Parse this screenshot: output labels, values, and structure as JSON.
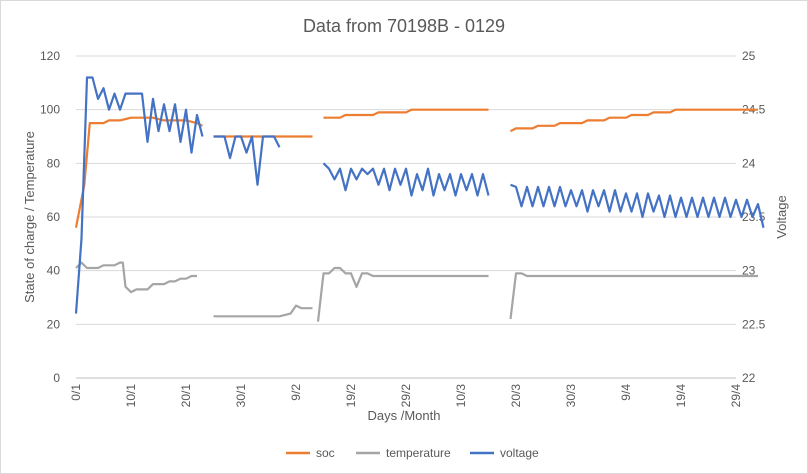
{
  "chart_data": {
    "type": "line",
    "title": "Data from 70198B - 0129",
    "xlabel": "Days /Month",
    "ylabel_left": "State of charge / Temperature",
    "ylabel_right": "Voltage",
    "x_ticks": [
      "0/1",
      "10/1",
      "20/1",
      "30/1",
      "9/2",
      "19/2",
      "29/2",
      "10/3",
      "20/3",
      "30/3",
      "9/4",
      "19/4",
      "29/4"
    ],
    "xlim": [
      0,
      120
    ],
    "ylim_left": [
      0,
      120
    ],
    "ylim_right": [
      22,
      25
    ],
    "y_ticks_left": [
      0,
      20,
      40,
      60,
      80,
      100,
      120
    ],
    "y_ticks_right": [
      22,
      22.5,
      23,
      23.5,
      24,
      24.5,
      25
    ],
    "grid": true,
    "legend_position": "bottom",
    "series": [
      {
        "name": "soc",
        "axis": "left",
        "color": "#ed7d31",
        "segments": [
          [
            [
              0,
              56
            ],
            [
              1.5,
              72
            ],
            [
              2.5,
              95
            ],
            [
              3.5,
              95
            ],
            [
              5,
              95
            ],
            [
              6,
              96
            ],
            [
              8,
              96
            ],
            [
              10,
              97
            ],
            [
              12,
              97
            ],
            [
              14,
              97
            ],
            [
              16,
              96
            ],
            [
              18,
              96
            ],
            [
              20,
              96
            ],
            [
              22,
              95
            ],
            [
              23,
              94
            ]
          ],
          [
            [
              25,
              90
            ],
            [
              28,
              90
            ],
            [
              32,
              90
            ],
            [
              36,
              90
            ],
            [
              40,
              90
            ],
            [
              43,
              90
            ]
          ],
          [
            [
              45,
              97
            ],
            [
              48,
              97
            ],
            [
              49,
              98
            ],
            [
              52,
              98
            ],
            [
              54,
              98
            ],
            [
              55,
              99
            ],
            [
              58,
              99
            ],
            [
              60,
              99
            ],
            [
              61,
              100
            ],
            [
              64,
              100
            ],
            [
              67,
              100
            ],
            [
              70,
              100
            ],
            [
              73,
              100
            ],
            [
              75,
              100
            ]
          ],
          [
            [
              79,
              92
            ],
            [
              80,
              93
            ],
            [
              83,
              93
            ],
            [
              84,
              94
            ],
            [
              87,
              94
            ],
            [
              88,
              95
            ],
            [
              92,
              95
            ],
            [
              93,
              96
            ],
            [
              96,
              96
            ],
            [
              97,
              97
            ],
            [
              100,
              97
            ],
            [
              101,
              98
            ],
            [
              104,
              98
            ],
            [
              105,
              99
            ],
            [
              108,
              99
            ],
            [
              109,
              100
            ],
            [
              114,
              100
            ],
            [
              118,
              100
            ],
            [
              122,
              100
            ],
            [
              124,
              100
            ]
          ]
        ]
      },
      {
        "name": "temperature",
        "axis": "left",
        "color": "#a5a5a5",
        "segments": [
          [
            [
              0,
              41
            ],
            [
              1,
              43
            ],
            [
              2,
              41
            ],
            [
              3,
              41
            ],
            [
              4,
              41
            ],
            [
              5,
              42
            ],
            [
              6,
              42
            ],
            [
              7,
              42
            ],
            [
              8,
              43
            ],
            [
              8.5,
              43
            ],
            [
              9,
              34
            ],
            [
              10,
              32
            ],
            [
              11,
              33
            ],
            [
              12,
              33
            ],
            [
              13,
              33
            ],
            [
              14,
              35
            ],
            [
              15,
              35
            ],
            [
              16,
              35
            ],
            [
              17,
              36
            ],
            [
              18,
              36
            ],
            [
              19,
              37
            ],
            [
              20,
              37
            ],
            [
              21,
              38
            ],
            [
              22,
              38
            ]
          ],
          [
            [
              25,
              23
            ],
            [
              28,
              23
            ],
            [
              31,
              23
            ],
            [
              34,
              23
            ],
            [
              37,
              23
            ],
            [
              39,
              24
            ],
            [
              40,
              27
            ],
            [
              41,
              26
            ],
            [
              43,
              26
            ]
          ],
          [
            [
              44,
              21
            ],
            [
              45,
              39
            ],
            [
              46,
              39
            ],
            [
              47,
              41
            ],
            [
              48,
              41
            ],
            [
              49,
              39
            ],
            [
              50,
              39
            ],
            [
              51,
              34
            ],
            [
              52,
              39
            ],
            [
              53,
              39
            ],
            [
              54,
              38
            ],
            [
              58,
              38
            ],
            [
              61,
              38
            ],
            [
              64,
              38
            ],
            [
              67,
              38
            ],
            [
              70,
              38
            ],
            [
              73,
              38
            ],
            [
              75,
              38
            ]
          ],
          [
            [
              79,
              22
            ],
            [
              80,
              39
            ],
            [
              81,
              39
            ],
            [
              82,
              38
            ],
            [
              84,
              38
            ],
            [
              86,
              38
            ],
            [
              88,
              38
            ],
            [
              90,
              38
            ],
            [
              93,
              38
            ],
            [
              96,
              38
            ],
            [
              100,
              38
            ],
            [
              104,
              38
            ],
            [
              108,
              38
            ],
            [
              112,
              38
            ],
            [
              116,
              38
            ],
            [
              120,
              38
            ],
            [
              124,
              38
            ]
          ]
        ]
      },
      {
        "name": "voltage",
        "axis": "right",
        "color": "#4472c4",
        "segments": [
          [
            [
              0,
              22.6
            ],
            [
              1,
              23.3
            ],
            [
              2,
              24.8
            ],
            [
              3,
              24.8
            ],
            [
              4,
              24.6
            ],
            [
              5,
              24.7
            ],
            [
              6,
              24.5
            ],
            [
              7,
              24.65
            ],
            [
              8,
              24.5
            ],
            [
              9,
              24.65
            ],
            [
              10,
              24.65
            ],
            [
              11,
              24.65
            ],
            [
              12,
              24.65
            ],
            [
              13,
              24.2
            ],
            [
              14,
              24.6
            ],
            [
              15,
              24.3
            ],
            [
              16,
              24.55
            ],
            [
              17,
              24.3
            ],
            [
              18,
              24.55
            ],
            [
              19,
              24.2
            ],
            [
              20,
              24.5
            ],
            [
              21,
              24.1
            ],
            [
              22,
              24.45
            ],
            [
              23,
              24.25
            ]
          ],
          [
            [
              25,
              24.25
            ],
            [
              26,
              24.25
            ],
            [
              27,
              24.25
            ],
            [
              28,
              24.05
            ],
            [
              29,
              24.25
            ],
            [
              30,
              24.25
            ],
            [
              31,
              24.1
            ],
            [
              32,
              24.25
            ],
            [
              33,
              23.8
            ],
            [
              34,
              24.25
            ],
            [
              35,
              24.25
            ],
            [
              36,
              24.25
            ],
            [
              37,
              24.15
            ]
          ],
          [
            [
              45,
              24
            ],
            [
              46,
              23.95
            ],
            [
              47,
              23.85
            ],
            [
              48,
              23.95
            ],
            [
              49,
              23.75
            ],
            [
              50,
              23.95
            ],
            [
              51,
              23.85
            ],
            [
              52,
              23.95
            ],
            [
              53,
              23.9
            ],
            [
              54,
              23.95
            ],
            [
              55,
              23.8
            ],
            [
              56,
              23.95
            ],
            [
              57,
              23.75
            ],
            [
              58,
              23.95
            ],
            [
              59,
              23.8
            ],
            [
              60,
              23.95
            ],
            [
              61,
              23.7
            ],
            [
              62,
              23.9
            ],
            [
              63,
              23.75
            ],
            [
              64,
              23.95
            ],
            [
              65,
              23.7
            ],
            [
              66,
              23.9
            ],
            [
              67,
              23.75
            ],
            [
              68,
              23.9
            ],
            [
              69,
              23.7
            ],
            [
              70,
              23.9
            ],
            [
              71,
              23.75
            ],
            [
              72,
              23.9
            ],
            [
              73,
              23.7
            ],
            [
              74,
              23.9
            ],
            [
              75,
              23.7
            ]
          ],
          [
            [
              79,
              23.8
            ],
            [
              80,
              23.78
            ],
            [
              81,
              23.6
            ],
            [
              82,
              23.78
            ],
            [
              83,
              23.6
            ],
            [
              84,
              23.78
            ],
            [
              85,
              23.6
            ],
            [
              86,
              23.78
            ],
            [
              87,
              23.6
            ],
            [
              88,
              23.78
            ],
            [
              89,
              23.6
            ],
            [
              90,
              23.75
            ],
            [
              91,
              23.6
            ],
            [
              92,
              23.75
            ],
            [
              93,
              23.55
            ],
            [
              94,
              23.75
            ],
            [
              95,
              23.6
            ],
            [
              96,
              23.75
            ],
            [
              97,
              23.55
            ],
            [
              98,
              23.75
            ],
            [
              99,
              23.55
            ],
            [
              100,
              23.72
            ],
            [
              101,
              23.55
            ],
            [
              102,
              23.72
            ],
            [
              103,
              23.5
            ],
            [
              104,
              23.72
            ],
            [
              105,
              23.55
            ],
            [
              106,
              23.7
            ],
            [
              107,
              23.5
            ],
            [
              108,
              23.7
            ],
            [
              109,
              23.5
            ],
            [
              110,
              23.68
            ],
            [
              111,
              23.5
            ],
            [
              112,
              23.68
            ],
            [
              113,
              23.5
            ],
            [
              114,
              23.68
            ],
            [
              115,
              23.5
            ],
            [
              116,
              23.68
            ],
            [
              117,
              23.5
            ],
            [
              118,
              23.68
            ],
            [
              119,
              23.5
            ],
            [
              120,
              23.66
            ],
            [
              121,
              23.5
            ],
            [
              122,
              23.66
            ],
            [
              123,
              23.5
            ],
            [
              124,
              23.62
            ],
            [
              125,
              23.4
            ]
          ]
        ]
      }
    ]
  }
}
